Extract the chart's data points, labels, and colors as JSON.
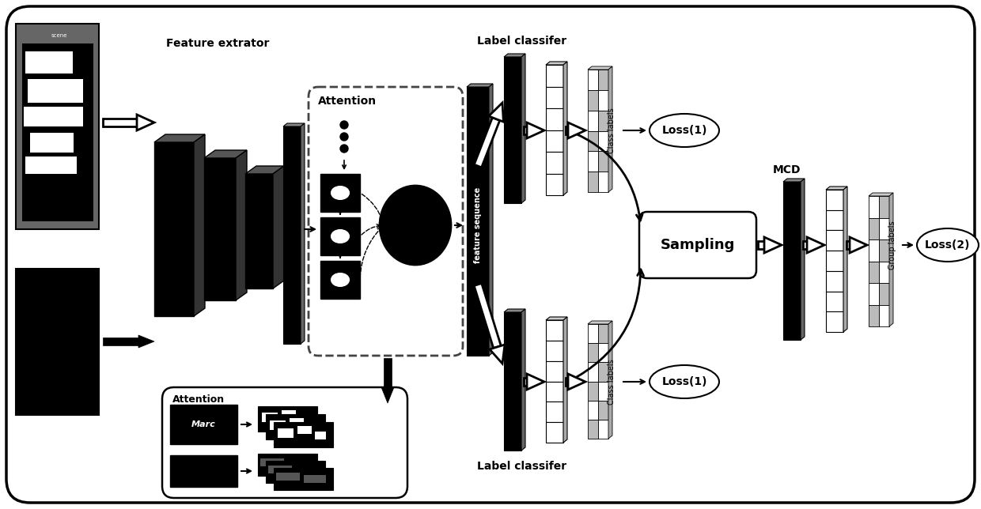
{
  "bg_color": "#ffffff",
  "fig_width": 12.4,
  "fig_height": 6.44,
  "labels": {
    "feature_extrator": "Feature extrator",
    "attention_top": "Attention",
    "attention_bottom": "Attention",
    "label_classifer_top": "Label classifer",
    "label_classifer_bottom": "Label classifer",
    "sampling": "Sampling",
    "mcd": "MCD",
    "loss1_top": "Loss(1)",
    "loss1_bottom": "Loss(1)",
    "loss2": "Loss(2)",
    "feature_sequence": "feature sequence",
    "class_labels_top": "Class labels",
    "class_labels_bottom": "Class labels",
    "group_labels": "Group labels"
  }
}
